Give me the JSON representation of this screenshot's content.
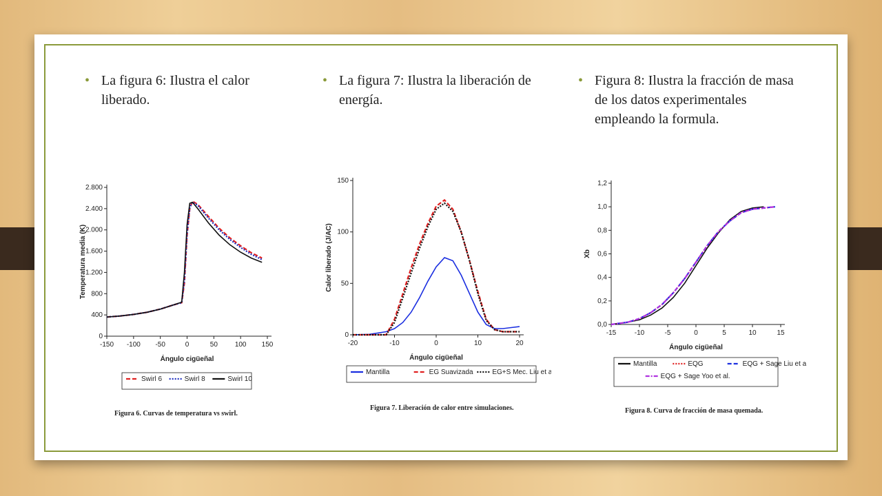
{
  "bullets": [
    "La figura 6: Ilustra el calor liberado.",
    "La figura 7: Ilustra la liberación de energía.",
    "Figura 8: Ilustra la fracción de masa de los datos experimentales empleando la formula."
  ],
  "chart_data": [
    {
      "type": "line",
      "caption": "Figura 6. Curvas de temperatura vs swirl.",
      "xlabel": "Ángulo cigüeñal",
      "ylabel": "Temperatura media (K)",
      "x": [
        -150,
        -125,
        -100,
        -75,
        -50,
        -25,
        -10,
        -5,
        0,
        5,
        10,
        20,
        40,
        60,
        80,
        100,
        120,
        140
      ],
      "series": [
        {
          "name": "Swirl 6",
          "color": "#e02020",
          "style": "dashed",
          "values": [
            360,
            380,
            410,
            450,
            510,
            590,
            630,
            1000,
            1900,
            2400,
            2540,
            2480,
            2250,
            2030,
            1850,
            1700,
            1570,
            1470
          ]
        },
        {
          "name": "Swirl 8",
          "color": "#2030c0",
          "style": "dotted",
          "values": [
            360,
            380,
            410,
            450,
            510,
            590,
            630,
            1050,
            1950,
            2420,
            2520,
            2460,
            2220,
            2000,
            1820,
            1670,
            1540,
            1440
          ]
        },
        {
          "name": "Swirl 10",
          "color": "#111111",
          "style": "solid",
          "values": [
            360,
            380,
            410,
            450,
            510,
            590,
            640,
            1200,
            2100,
            2500,
            2520,
            2400,
            2130,
            1900,
            1720,
            1580,
            1470,
            1390
          ]
        }
      ],
      "xlim": [
        -150,
        150
      ],
      "xticks": [
        -150,
        -100,
        -50,
        0,
        50,
        100,
        150
      ],
      "ylim": [
        0,
        2800
      ],
      "yticks": [
        0,
        {
          "value": 400,
          "label": "400"
        },
        {
          "value": 800,
          "label": "800"
        },
        {
          "value": 1200,
          "label": "1.200"
        },
        {
          "value": 1600,
          "label": "1.600"
        },
        {
          "value": 2000,
          "label": "2.000"
        },
        {
          "value": 2400,
          "label": "2.400"
        },
        {
          "value": 2800,
          "label": "2.800"
        }
      ]
    },
    {
      "type": "line",
      "caption": "Figura 7. Liberación de calor entre simulaciones.",
      "xlabel": "Ángulo cigüeñal",
      "ylabel": "Calor liberado (J/AC)",
      "x": [
        -20,
        -16,
        -12,
        -10,
        -8,
        -6,
        -4,
        -2,
        0,
        2,
        4,
        6,
        8,
        10,
        12,
        14,
        16,
        18,
        20
      ],
      "series": [
        {
          "name": "Mantilla",
          "color": "#1a2ee0",
          "style": "solid",
          "values": [
            0,
            0.5,
            3,
            6,
            12,
            22,
            36,
            52,
            66,
            75,
            72,
            58,
            40,
            22,
            10,
            6,
            6,
            7,
            8
          ]
        },
        {
          "name": "EG Suavizada",
          "color": "#e02020",
          "style": "dashed",
          "values": [
            0,
            0,
            0,
            15,
            40,
            65,
            88,
            108,
            125,
            131,
            122,
            100,
            72,
            42,
            15,
            5,
            3,
            3,
            3
          ]
        },
        {
          "name": "EG+S Mec. Liu et al.",
          "color": "#111111",
          "style": "dotted",
          "values": [
            0,
            0,
            0,
            12,
            36,
            60,
            84,
            105,
            122,
            128,
            120,
            100,
            72,
            40,
            14,
            5,
            3,
            3,
            3
          ]
        }
      ],
      "xlim": [
        -20,
        20
      ],
      "xticks": [
        -20,
        -10,
        0,
        10,
        20
      ],
      "ylim": [
        0,
        150
      ],
      "yticks": [
        0,
        50,
        100,
        150
      ]
    },
    {
      "type": "line",
      "caption": "Figura 8. Curva de fracción de masa quemada.",
      "xlabel": "Ángulo cigüeñal",
      "ylabel": "Xb",
      "x": [
        -15,
        -12,
        -10,
        -8,
        -6,
        -4,
        -2,
        0,
        2,
        4,
        6,
        8,
        10,
        12,
        14
      ],
      "series": [
        {
          "name": "Mantilla",
          "color": "#111111",
          "style": "solid",
          "values": [
            0,
            0.02,
            0.04,
            0.08,
            0.14,
            0.23,
            0.35,
            0.5,
            0.65,
            0.78,
            0.89,
            0.96,
            0.99,
            1.0,
            null
          ]
        },
        {
          "name": "EQG",
          "color": "#e02020",
          "style": "dotted",
          "values": [
            0,
            0.02,
            0.05,
            0.1,
            0.17,
            0.27,
            0.39,
            0.53,
            0.67,
            0.79,
            0.88,
            0.95,
            0.98,
            0.99,
            1.0
          ]
        },
        {
          "name": "EQG + Sage Liu et al.",
          "color": "#1a2ee0",
          "style": "dashed",
          "values": [
            0,
            0.02,
            0.05,
            0.1,
            0.17,
            0.27,
            0.39,
            0.53,
            0.67,
            0.79,
            0.88,
            0.95,
            0.98,
            0.99,
            1.0
          ]
        },
        {
          "name": "EQG + Sage Yoo et al.",
          "color": "#b030e0",
          "style": "dashdot",
          "values": [
            0,
            0.02,
            0.05,
            0.1,
            0.17,
            0.27,
            0.39,
            0.53,
            0.67,
            0.79,
            0.88,
            0.95,
            0.98,
            0.99,
            1.0
          ]
        }
      ],
      "xlim": [
        -15,
        15
      ],
      "xticks": [
        -15,
        -10,
        -5,
        0,
        5,
        10,
        15
      ],
      "ylim": [
        0,
        1.2
      ],
      "yticks": [
        {
          "value": 0,
          "label": "0,0"
        },
        {
          "value": 0.2,
          "label": "0,2"
        },
        {
          "value": 0.4,
          "label": "0,4"
        },
        {
          "value": 0.6,
          "label": "0,6"
        },
        {
          "value": 0.8,
          "label": "0,8"
        },
        {
          "value": 1.0,
          "label": "1,0"
        },
        {
          "value": 1.2,
          "label": "1,2"
        }
      ]
    }
  ]
}
